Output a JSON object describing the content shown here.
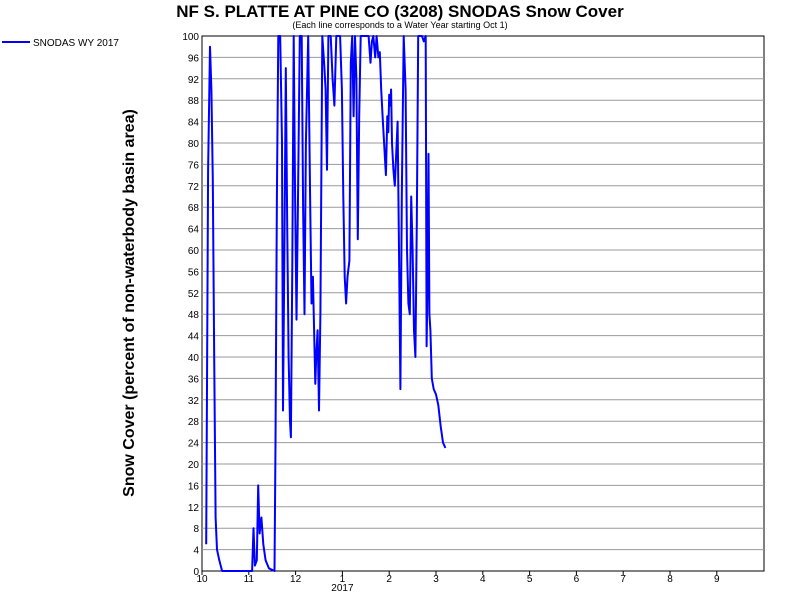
{
  "chart_data": {
    "type": "line",
    "title": "NF S. PLATTE AT PINE CO (3208) SNODAS Snow Cover",
    "subtitle": "(Each line corresponds to a Water Year starting Oct 1)",
    "ylabel": "Snow Cover (percent of non-waterbody basin area)",
    "xlabel": "",
    "ylim": [
      0,
      100
    ],
    "y_ticks": [
      0,
      4,
      8,
      12,
      16,
      20,
      24,
      28,
      32,
      36,
      40,
      44,
      48,
      52,
      56,
      60,
      64,
      68,
      72,
      76,
      80,
      84,
      88,
      92,
      96,
      100
    ],
    "x_ticks": [
      {
        "label": "10",
        "month": 0
      },
      {
        "label": "11",
        "month": 1
      },
      {
        "label": "12",
        "month": 2
      },
      {
        "label": "1",
        "month": 3
      },
      {
        "label": "2",
        "month": 4
      },
      {
        "label": "3",
        "month": 5
      },
      {
        "label": "4",
        "month": 6
      },
      {
        "label": "5",
        "month": 7
      },
      {
        "label": "6",
        "month": 8
      },
      {
        "label": "7",
        "month": 9
      },
      {
        "label": "8",
        "month": 10
      },
      {
        "label": "9",
        "month": 11
      }
    ],
    "xlim": [
      0,
      12.2
    ],
    "year_label": "2017",
    "year_label_at": 3,
    "grid": true,
    "legend_position": "top-left",
    "series": [
      {
        "name": "SNODAS WY 2017",
        "color": "#0000ff",
        "points": [
          [
            0.09,
            5
          ],
          [
            0.13,
            75
          ],
          [
            0.17,
            98
          ],
          [
            0.2,
            90
          ],
          [
            0.23,
            73
          ],
          [
            0.26,
            40
          ],
          [
            0.29,
            10
          ],
          [
            0.32,
            4
          ],
          [
            0.37,
            2
          ],
          [
            0.43,
            0
          ],
          [
            0.7,
            0
          ],
          [
            1.0,
            0
          ],
          [
            1.07,
            0
          ],
          [
            1.1,
            8
          ],
          [
            1.13,
            1
          ],
          [
            1.17,
            2
          ],
          [
            1.2,
            16
          ],
          [
            1.23,
            7
          ],
          [
            1.27,
            10
          ],
          [
            1.31,
            5
          ],
          [
            1.36,
            2
          ],
          [
            1.43,
            0.5
          ],
          [
            1.55,
            0
          ],
          [
            1.57,
            24
          ],
          [
            1.6,
            70
          ],
          [
            1.63,
            100
          ],
          [
            1.67,
            100
          ],
          [
            1.71,
            80
          ],
          [
            1.73,
            30
          ],
          [
            1.76,
            60
          ],
          [
            1.79,
            94
          ],
          [
            1.82,
            65
          ],
          [
            1.85,
            40
          ],
          [
            1.88,
            28
          ],
          [
            1.9,
            25
          ],
          [
            1.93,
            57
          ],
          [
            1.96,
            100
          ],
          [
            1.99,
            70
          ],
          [
            2.02,
            47
          ],
          [
            2.05,
            68
          ],
          [
            2.09,
            100
          ],
          [
            2.13,
            100
          ],
          [
            2.16,
            68
          ],
          [
            2.19,
            48
          ],
          [
            2.22,
            80
          ],
          [
            2.27,
            100
          ],
          [
            2.31,
            70
          ],
          [
            2.34,
            50
          ],
          [
            2.37,
            55
          ],
          [
            2.42,
            35
          ],
          [
            2.44,
            40
          ],
          [
            2.47,
            45
          ],
          [
            2.5,
            30
          ],
          [
            2.53,
            48
          ],
          [
            2.57,
            100
          ],
          [
            2.61,
            95
          ],
          [
            2.64,
            90
          ],
          [
            2.67,
            75
          ],
          [
            2.7,
            100
          ],
          [
            2.75,
            100
          ],
          [
            2.79,
            92
          ],
          [
            2.83,
            87
          ],
          [
            2.87,
            100
          ],
          [
            2.91,
            100
          ],
          [
            2.95,
            100
          ],
          [
            2.99,
            90
          ],
          [
            3.02,
            70
          ],
          [
            3.05,
            55
          ],
          [
            3.08,
            50
          ],
          [
            3.11,
            55
          ],
          [
            3.15,
            58
          ],
          [
            3.18,
            95
          ],
          [
            3.21,
            100
          ],
          [
            3.24,
            85
          ],
          [
            3.27,
            100
          ],
          [
            3.3,
            92
          ],
          [
            3.33,
            62
          ],
          [
            3.36,
            85
          ],
          [
            3.39,
            100
          ],
          [
            3.43,
            100
          ],
          [
            3.48,
            100
          ],
          [
            3.53,
            100
          ],
          [
            3.56,
            100
          ],
          [
            3.6,
            95
          ],
          [
            3.63,
            99
          ],
          [
            3.66,
            100
          ],
          [
            3.7,
            96
          ],
          [
            3.73,
            100
          ],
          [
            3.77,
            96
          ],
          [
            3.8,
            97
          ],
          [
            3.83,
            90
          ],
          [
            3.86,
            85
          ],
          [
            3.89,
            80
          ],
          [
            3.93,
            74
          ],
          [
            3.96,
            85
          ],
          [
            3.98,
            82
          ],
          [
            4.0,
            89
          ],
          [
            4.02,
            87
          ],
          [
            4.04,
            90
          ],
          [
            4.06,
            80
          ],
          [
            4.09,
            75
          ],
          [
            4.12,
            72
          ],
          [
            4.15,
            78
          ],
          [
            4.18,
            84
          ],
          [
            4.21,
            60
          ],
          [
            4.24,
            34
          ],
          [
            4.27,
            70
          ],
          [
            4.31,
            100
          ],
          [
            4.35,
            90
          ],
          [
            4.38,
            60
          ],
          [
            4.41,
            50
          ],
          [
            4.44,
            48
          ],
          [
            4.47,
            70
          ],
          [
            4.5,
            60
          ],
          [
            4.53,
            45
          ],
          [
            4.56,
            40
          ],
          [
            4.59,
            65
          ],
          [
            4.62,
            100
          ],
          [
            4.66,
            100
          ],
          [
            4.7,
            100
          ],
          [
            4.74,
            99
          ],
          [
            4.78,
            100
          ],
          [
            4.8,
            42
          ],
          [
            4.82,
            55
          ],
          [
            4.84,
            78
          ],
          [
            4.86,
            48
          ],
          [
            4.88,
            45
          ],
          [
            4.91,
            36
          ],
          [
            4.95,
            34
          ],
          [
            5.0,
            33
          ],
          [
            5.05,
            31
          ],
          [
            5.1,
            27
          ],
          [
            5.15,
            24
          ],
          [
            5.2,
            23
          ]
        ]
      }
    ]
  }
}
